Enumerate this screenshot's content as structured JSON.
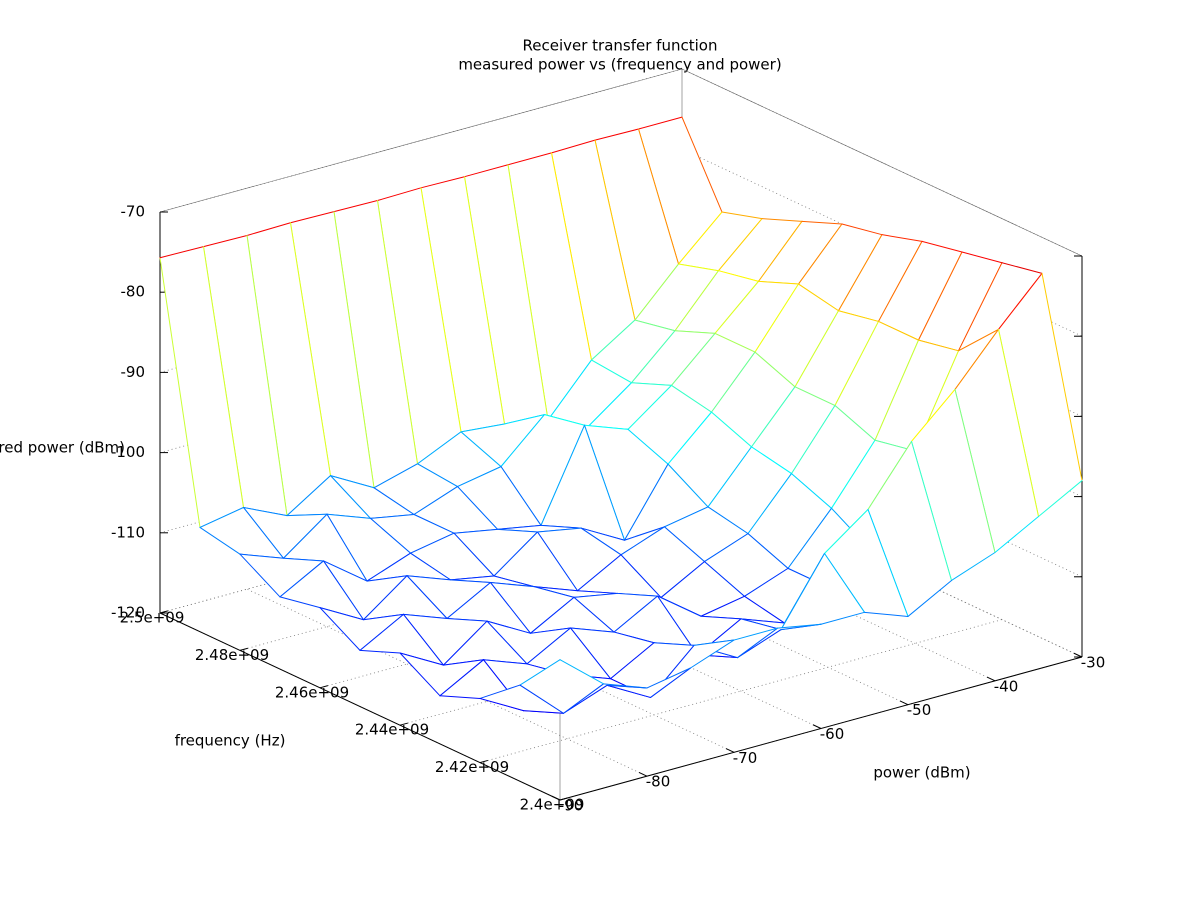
{
  "chart_data": {
    "type": "surface",
    "title": "Receiver transfer function",
    "subtitle": "measured power vs (frequency and power)",
    "xlabel": "frequency (Hz)",
    "ylabel": "power (dBm)",
    "zlabel": "measured power (dBm)",
    "x": [
      2400000000,
      2410000000,
      2420000000,
      2430000000,
      2440000000,
      2450000000,
      2460000000,
      2470000000,
      2480000000,
      2490000000,
      2500000000
    ],
    "y": [
      -90,
      -85,
      -80,
      -75,
      -70,
      -65,
      -60,
      -55,
      -50,
      -45,
      -40,
      -35,
      -30
    ],
    "values": [
      [
        -102.5,
        -107,
        -109,
        -108,
        -106,
        -106,
        -107,
        -107,
        -109,
        -106,
        -104,
        -101,
        -98
      ],
      [
        -108,
        -113,
        -111,
        -114,
        -109,
        -112,
        -110,
        -102,
        -98,
        -91,
        -86,
        -80,
        -74.5
      ],
      [
        -112,
        -115,
        -112,
        -114,
        -111,
        -114,
        -111,
        -113,
        -110,
        -107,
        -96,
        -85,
        -75.5
      ],
      [
        -114,
        -111,
        -113,
        -110,
        -112,
        -109,
        -113,
        -112,
        -110,
        -104,
        -97,
        -86,
        -76.5
      ],
      [
        -111,
        -114,
        -110,
        -113,
        -110,
        -111,
        -113,
        -110,
        -108,
        -102,
        -95,
        -86,
        -77.5
      ],
      [
        -113,
        -110,
        -112,
        -109,
        -111,
        -113,
        -110,
        -108,
        -107,
        -101,
        -95,
        -87,
        -79
      ],
      [
        -110,
        -113,
        -109,
        -111,
        -112,
        -108,
        -109,
        -112,
        -104,
        -99,
        -93,
        -86,
        -80
      ],
      [
        -111,
        -108,
        -112,
        -110,
        -109,
        -110,
        -111,
        -100,
        -102,
        -98,
        -93,
        -88,
        -82
      ],
      [
        -108,
        -110,
        -106,
        -108,
        -109,
        -107,
        -106,
        -101,
        -104,
        -100,
        -95,
        -89,
        -84
      ],
      [
        -107,
        -106,
        -108.5,
        -105,
        -108,
        -106.5,
        -104,
        -104.5,
        -105.5,
        -99.5,
        -96,
        -90.5,
        -85.5
      ],
      [
        -75.7,
        -75.8,
        -75.9,
        -75.8,
        -75.9,
        -76,
        -75.9,
        -76,
        -76,
        -76,
        -75.9,
        -76,
        -76
      ]
    ],
    "xlim": [
      2400000000,
      2500000000
    ],
    "ylim": [
      -90,
      -30
    ],
    "zlim": [
      -120,
      -70
    ],
    "xticks": [
      {
        "value": 2400000000,
        "label": "2.4e+09"
      },
      {
        "value": 2420000000,
        "label": "2.42e+09"
      },
      {
        "value": 2440000000,
        "label": "2.44e+09"
      },
      {
        "value": 2460000000,
        "label": "2.46e+09"
      },
      {
        "value": 2480000000,
        "label": "2.48e+09"
      },
      {
        "value": 2500000000,
        "label": "2.5e+09"
      }
    ],
    "yticks": [
      -90,
      -80,
      -70,
      -60,
      -50,
      -40,
      -30
    ],
    "zticks": [
      -120,
      -110,
      -100,
      -90,
      -80,
      -70
    ],
    "colormap": "jet",
    "grid": true,
    "hidden3d": true
  }
}
